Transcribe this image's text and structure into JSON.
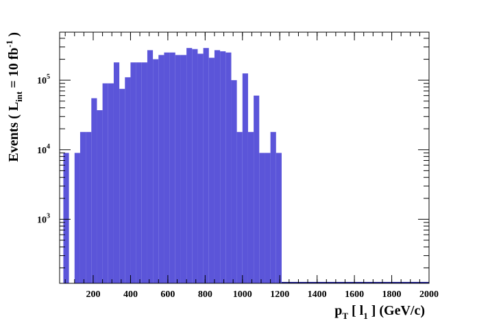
{
  "chart_data": {
    "type": "histogram",
    "bins": [
      40,
      70,
      100,
      130,
      160,
      190,
      220,
      250,
      280,
      310,
      340,
      370,
      400,
      430,
      460,
      490,
      520,
      550,
      580,
      610,
      640,
      670,
      700,
      730,
      760,
      790,
      820,
      850,
      880,
      910,
      940,
      970,
      1000,
      1030,
      1060,
      1090,
      1120,
      1150,
      1180,
      1210
    ],
    "values": [
      9000,
      0,
      9000,
      18000,
      18000,
      55000,
      37000,
      90000,
      90000,
      180000,
      75000,
      110000,
      180000,
      180000,
      180000,
      270000,
      200000,
      230000,
      250000,
      250000,
      230000,
      230000,
      290000,
      280000,
      240000,
      290000,
      210000,
      270000,
      260000,
      250000,
      100000,
      18000,
      125000,
      18000,
      60000,
      9000,
      9000,
      18000,
      9000
    ],
    "color": "#5b55d9",
    "xlim": [
      20,
      2000
    ],
    "ylim": [
      120,
      490000
    ],
    "log_y": true,
    "xticks": [
      200,
      400,
      600,
      800,
      1000,
      1200,
      1400,
      1600,
      1800,
      2000
    ],
    "yticks": [
      {
        "value": 1000,
        "label": "10",
        "exponent": "3"
      },
      {
        "value": 10000,
        "label": "10",
        "exponent": "4"
      },
      {
        "value": 100000,
        "label": "10",
        "exponent": "5"
      }
    ],
    "x_label": [
      "p",
      "T",
      " [ l",
      "1",
      " ] (GeV/c)"
    ],
    "y_label": [
      "Events  ( L",
      "int",
      " = 10 fb",
      "-1",
      " )"
    ]
  }
}
